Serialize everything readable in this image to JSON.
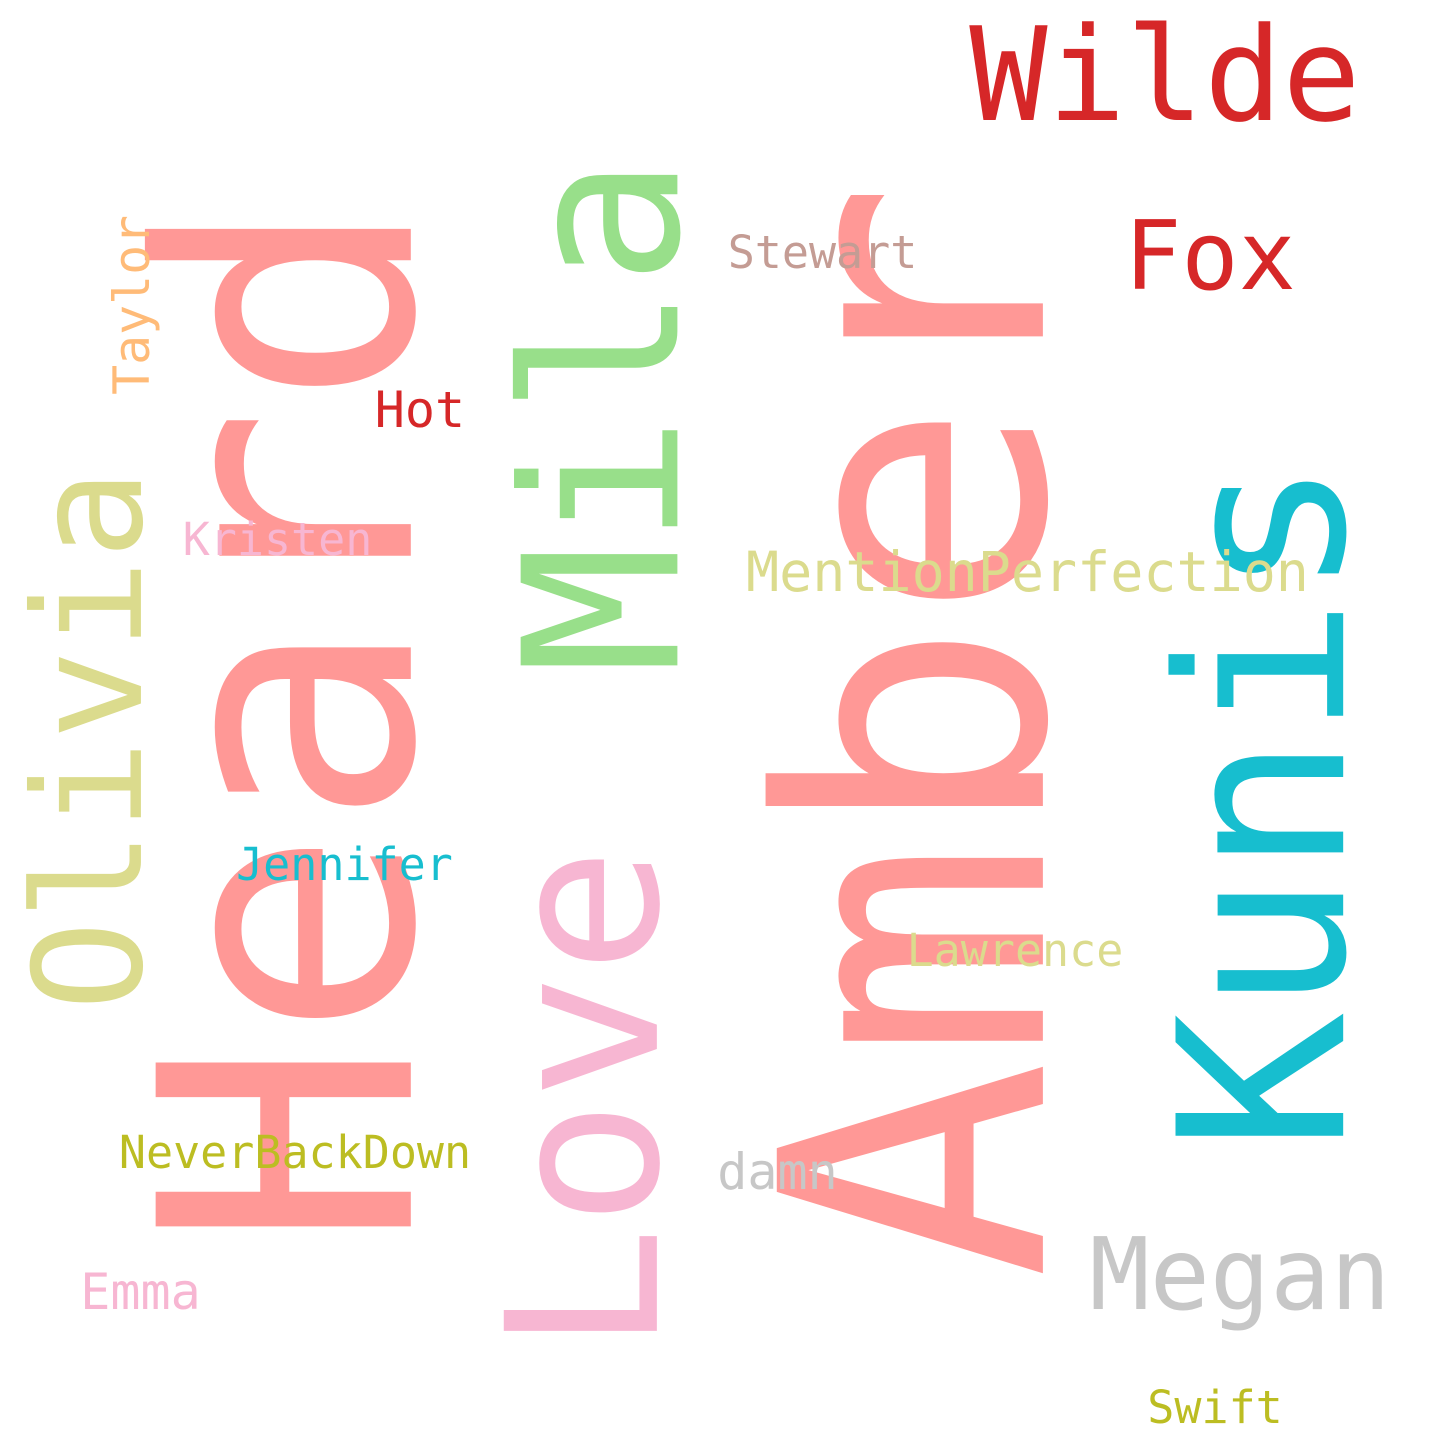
{
  "words": [
    {
      "text": "Heard",
      "color": "#ff9896",
      "rotated": true
    },
    {
      "text": "Amber",
      "color": "#ff9896",
      "rotated": true
    },
    {
      "text": "Mila",
      "color": "#98df8a",
      "rotated": true
    },
    {
      "text": "Kunis",
      "color": "#17becf",
      "rotated": true
    },
    {
      "text": "Olivia",
      "color": "#dbdb8d",
      "rotated": true
    },
    {
      "text": "Love",
      "color": "#f7b6d2",
      "rotated": true
    },
    {
      "text": "Wilde",
      "color": "#d62728",
      "rotated": false
    },
    {
      "text": "Megan",
      "color": "#c7c7c7",
      "rotated": false
    },
    {
      "text": "Fox",
      "color": "#d62728",
      "rotated": false
    },
    {
      "text": "MentionPerfection",
      "color": "#dbdb8d",
      "rotated": false
    },
    {
      "text": "NeverBackDown",
      "color": "#bcbd22",
      "rotated": false
    },
    {
      "text": "Lawrence",
      "color": "#dbdb8d",
      "rotated": false
    },
    {
      "text": "Jennifer",
      "color": "#17becf",
      "rotated": false
    },
    {
      "text": "damn",
      "color": "#c7c7c7",
      "rotated": false
    },
    {
      "text": "Stewart",
      "color": "#c49c94",
      "rotated": false
    },
    {
      "text": "Hot",
      "color": "#d62728",
      "rotated": false
    },
    {
      "text": "Kristen",
      "color": "#f7b6d2",
      "rotated": false
    },
    {
      "text": "Taylor",
      "color": "#ffbb78",
      "rotated": true
    },
    {
      "text": "Emma",
      "color": "#f7b6d2",
      "rotated": false
    },
    {
      "text": "Swift",
      "color": "#bcbd22",
      "rotated": false
    }
  ]
}
